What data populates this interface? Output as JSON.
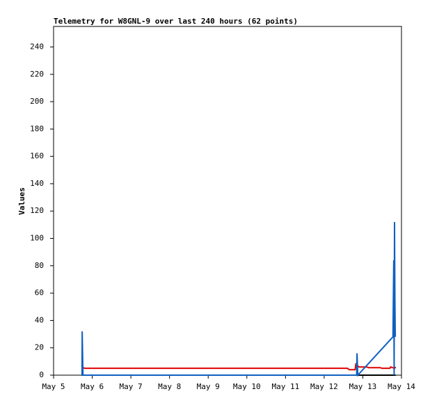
{
  "chart_data": {
    "type": "line",
    "title": "Telemetry for W8GNL-9 over last 240 hours (62 points)",
    "y_label": "Values",
    "xlim": [
      5,
      14
    ],
    "xticks": [
      {
        "value": 5,
        "label": "May 5"
      },
      {
        "value": 6,
        "label": "May 6"
      },
      {
        "value": 7,
        "label": "May 7"
      },
      {
        "value": 8,
        "label": "May 8"
      },
      {
        "value": 9,
        "label": "May 9"
      },
      {
        "value": 10,
        "label": "May 10"
      },
      {
        "value": 11,
        "label": "May 11"
      },
      {
        "value": 12,
        "label": "May 12"
      },
      {
        "value": 13,
        "label": "May 13"
      },
      {
        "value": 14,
        "label": "May 14"
      }
    ],
    "ylim": [
      0,
      255
    ],
    "yticks": [
      0,
      20,
      40,
      60,
      80,
      100,
      120,
      140,
      160,
      180,
      200,
      220,
      240
    ],
    "grid": false,
    "series": [
      {
        "color": "#000000",
        "x": [
          5.73,
          13.85
        ],
        "values": [
          0,
          0
        ]
      },
      {
        "color": "#e00000",
        "x": [
          5.74,
          5.8,
          12.6,
          12.65,
          12.8,
          12.82,
          12.9,
          13.1,
          13.15,
          13.45,
          13.5,
          13.7,
          13.72,
          13.82,
          13.85
        ],
        "values": [
          6,
          5,
          5,
          4,
          4,
          8,
          6,
          6,
          5.5,
          5.5,
          5,
          5,
          6,
          5,
          6
        ]
      },
      {
        "color": "#1060c0",
        "x": [
          5.735,
          5.74,
          5.75,
          5.76,
          12.84,
          12.85,
          12.86,
          12.87,
          13.78,
          13.8,
          13.81,
          13.82,
          13.83,
          13.84
        ],
        "values": [
          0,
          32,
          16,
          0,
          0,
          16,
          8,
          0,
          28,
          84,
          0,
          112,
          56,
          28
        ]
      }
    ]
  }
}
